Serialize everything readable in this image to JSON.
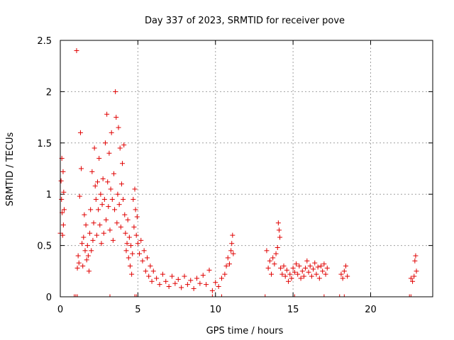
{
  "chart_data": {
    "type": "scatter",
    "title": "Day 337 of 2023, SRMTID for receiver pove",
    "xlabel": "GPS time / hours",
    "ylabel": "SRMTID / TECUs",
    "xlim": [
      0,
      24
    ],
    "ylim": [
      0,
      2.5
    ],
    "xticks": [
      0,
      5,
      10,
      15,
      20
    ],
    "xtick_labels": [
      "0",
      "5",
      "10",
      "15",
      "20"
    ],
    "yticks": [
      0,
      0.5,
      1,
      1.5,
      2,
      2.5
    ],
    "ytick_labels": [
      "0",
      "0.5",
      "1",
      "1.5",
      "2",
      "2.5"
    ],
    "grid": true,
    "marker": "+",
    "series_color": "#e00000",
    "series": [
      {
        "name": "SRMTID",
        "points": [
          [
            0.0,
            0.62
          ],
          [
            0.05,
            1.13
          ],
          [
            0.08,
            0.95
          ],
          [
            0.1,
            1.35
          ],
          [
            0.12,
            0.82
          ],
          [
            0.15,
            0.6
          ],
          [
            0.18,
            1.22
          ],
          [
            0.2,
            0.7
          ],
          [
            0.22,
            1.02
          ],
          [
            0.25,
            0.85
          ],
          [
            1.05,
            2.4
          ],
          [
            1.1,
            0.28
          ],
          [
            1.15,
            0.4
          ],
          [
            1.2,
            0.33
          ],
          [
            1.25,
            0.98
          ],
          [
            1.3,
            1.6
          ],
          [
            1.35,
            1.25
          ],
          [
            1.4,
            0.52
          ],
          [
            1.45,
            0.3
          ],
          [
            1.5,
            0.58
          ],
          [
            1.55,
            0.8
          ],
          [
            1.6,
            0.45
          ],
          [
            1.65,
            0.7
          ],
          [
            1.7,
            0.36
          ],
          [
            1.75,
            0.5
          ],
          [
            1.8,
            0.4
          ],
          [
            1.85,
            0.25
          ],
          [
            1.9,
            0.62
          ],
          [
            1.95,
            0.85
          ],
          [
            2.0,
            0.45
          ],
          [
            2.05,
            1.22
          ],
          [
            2.1,
            0.55
          ],
          [
            2.15,
            0.72
          ],
          [
            2.2,
            1.45
          ],
          [
            2.25,
            1.08
          ],
          [
            2.3,
            0.95
          ],
          [
            2.35,
            0.6
          ],
          [
            2.4,
            1.12
          ],
          [
            2.45,
            0.85
          ],
          [
            2.5,
            1.35
          ],
          [
            2.55,
            0.7
          ],
          [
            2.6,
            1.0
          ],
          [
            2.65,
            0.52
          ],
          [
            2.7,
            0.9
          ],
          [
            2.75,
            1.15
          ],
          [
            2.8,
            0.62
          ],
          [
            2.85,
            0.95
          ],
          [
            2.9,
            1.5
          ],
          [
            2.95,
            0.75
          ],
          [
            3.0,
            1.78
          ],
          [
            3.05,
            1.12
          ],
          [
            3.1,
            0.88
          ],
          [
            3.15,
            1.4
          ],
          [
            3.2,
            0.65
          ],
          [
            3.25,
            1.05
          ],
          [
            3.3,
            1.6
          ],
          [
            3.35,
            0.95
          ],
          [
            3.4,
            0.55
          ],
          [
            3.45,
            1.2
          ],
          [
            3.5,
            0.85
          ],
          [
            3.55,
            2.0
          ],
          [
            3.6,
            1.75
          ],
          [
            3.65,
            0.72
          ],
          [
            3.7,
            1.0
          ],
          [
            3.75,
            1.65
          ],
          [
            3.8,
            0.9
          ],
          [
            3.85,
            1.45
          ],
          [
            3.9,
            0.68
          ],
          [
            3.95,
            1.1
          ],
          [
            4.0,
            1.3
          ],
          [
            4.05,
            0.95
          ],
          [
            4.1,
            1.48
          ],
          [
            4.15,
            0.8
          ],
          [
            4.2,
            0.62
          ],
          [
            4.25,
            0.45
          ],
          [
            4.3,
            0.52
          ],
          [
            4.35,
            0.75
          ],
          [
            4.4,
            0.38
          ],
          [
            4.45,
            0.58
          ],
          [
            4.5,
            0.3
          ],
          [
            4.55,
            0.5
          ],
          [
            4.6,
            0.22
          ],
          [
            4.65,
            0.42
          ],
          [
            4.7,
            0.95
          ],
          [
            4.75,
            0.68
          ],
          [
            4.8,
            1.05
          ],
          [
            4.85,
            0.85
          ],
          [
            4.9,
            0.6
          ],
          [
            4.95,
            0.78
          ],
          [
            5.0,
            0.52
          ],
          [
            5.1,
            0.42
          ],
          [
            5.2,
            0.55
          ],
          [
            5.3,
            0.35
          ],
          [
            5.4,
            0.45
          ],
          [
            5.5,
            0.25
          ],
          [
            5.6,
            0.38
          ],
          [
            5.7,
            0.2
          ],
          [
            5.8,
            0.3
          ],
          [
            5.9,
            0.15
          ],
          [
            6.0,
            0.25
          ],
          [
            6.2,
            0.18
          ],
          [
            6.4,
            0.12
          ],
          [
            6.6,
            0.22
          ],
          [
            6.8,
            0.15
          ],
          [
            7.0,
            0.1
          ],
          [
            7.2,
            0.2
          ],
          [
            7.4,
            0.13
          ],
          [
            7.6,
            0.17
          ],
          [
            7.8,
            0.09
          ],
          [
            8.0,
            0.2
          ],
          [
            8.2,
            0.12
          ],
          [
            8.4,
            0.16
          ],
          [
            8.6,
            0.08
          ],
          [
            8.8,
            0.18
          ],
          [
            9.0,
            0.13
          ],
          [
            9.2,
            0.21
          ],
          [
            9.4,
            0.12
          ],
          [
            9.6,
            0.26
          ],
          [
            9.8,
            0.06
          ],
          [
            10.0,
            0.14
          ],
          [
            10.2,
            0.1
          ],
          [
            10.4,
            0.18
          ],
          [
            10.6,
            0.22
          ],
          [
            10.7,
            0.3
          ],
          [
            10.8,
            0.38
          ],
          [
            10.9,
            0.32
          ],
          [
            11.0,
            0.45
          ],
          [
            11.05,
            0.52
          ],
          [
            11.1,
            0.6
          ],
          [
            11.15,
            0.42
          ],
          [
            13.3,
            0.45
          ],
          [
            13.4,
            0.28
          ],
          [
            13.5,
            0.35
          ],
          [
            13.6,
            0.22
          ],
          [
            13.7,
            0.38
          ],
          [
            13.8,
            0.32
          ],
          [
            13.9,
            0.42
          ],
          [
            14.0,
            0.48
          ],
          [
            14.05,
            0.72
          ],
          [
            14.1,
            0.65
          ],
          [
            14.15,
            0.58
          ],
          [
            14.2,
            0.28
          ],
          [
            14.3,
            0.22
          ],
          [
            14.4,
            0.3
          ],
          [
            14.5,
            0.2
          ],
          [
            14.6,
            0.26
          ],
          [
            14.7,
            0.15
          ],
          [
            14.8,
            0.22
          ],
          [
            14.9,
            0.18
          ],
          [
            15.0,
            0.28
          ],
          [
            15.1,
            0.24
          ],
          [
            15.2,
            0.32
          ],
          [
            15.3,
            0.22
          ],
          [
            15.4,
            0.3
          ],
          [
            15.5,
            0.18
          ],
          [
            15.6,
            0.25
          ],
          [
            15.7,
            0.2
          ],
          [
            15.8,
            0.28
          ],
          [
            15.9,
            0.35
          ],
          [
            16.0,
            0.24
          ],
          [
            16.1,
            0.3
          ],
          [
            16.2,
            0.2
          ],
          [
            16.3,
            0.27
          ],
          [
            16.4,
            0.33
          ],
          [
            16.5,
            0.22
          ],
          [
            16.6,
            0.29
          ],
          [
            16.7,
            0.18
          ],
          [
            16.8,
            0.3
          ],
          [
            16.9,
            0.25
          ],
          [
            17.0,
            0.32
          ],
          [
            17.1,
            0.22
          ],
          [
            17.2,
            0.28
          ],
          [
            18.1,
            0.22
          ],
          [
            18.2,
            0.18
          ],
          [
            18.3,
            0.25
          ],
          [
            18.4,
            0.3
          ],
          [
            18.5,
            0.2
          ],
          [
            22.6,
            0.18
          ],
          [
            22.7,
            0.15
          ],
          [
            22.8,
            0.2
          ],
          [
            22.85,
            0.35
          ],
          [
            22.9,
            0.4
          ],
          [
            22.95,
            0.25
          ]
        ]
      }
    ],
    "zero_marker_times": [
      0.9,
      1.0,
      1.1,
      3.2,
      4.8,
      4.9,
      9.8,
      10.4,
      13.2,
      15.1,
      17.0,
      18.0,
      18.3,
      22.5,
      22.6
    ]
  }
}
